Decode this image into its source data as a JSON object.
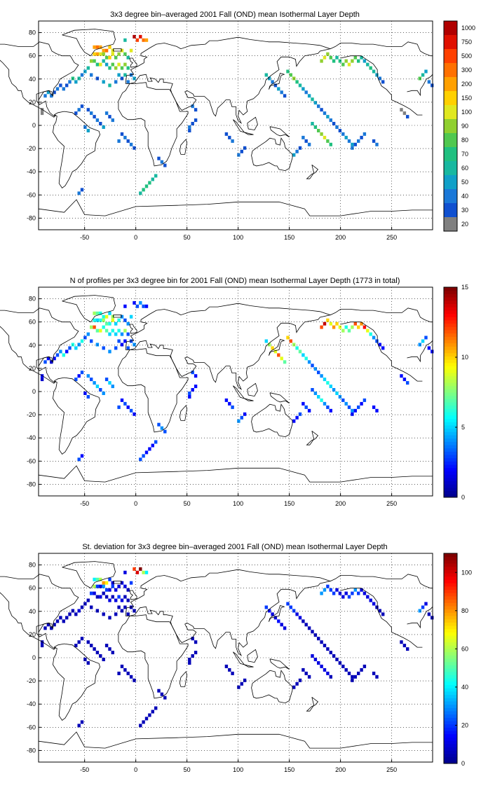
{
  "panels": [
    {
      "title": "3x3 degree bin–averaged 2001 Fall (OND) mean Isothermal Layer Depth",
      "colorbar": {
        "type": "discrete",
        "labels": [
          "20",
          "30",
          "40",
          "50",
          "60",
          "70",
          "80",
          "90",
          "100",
          "150",
          "200",
          "300",
          "500",
          "750",
          "1000"
        ],
        "colors": [
          "#808080",
          "#1050d0",
          "#1a78d8",
          "#10a0c8",
          "#18b8a0",
          "#20c080",
          "#50c850",
          "#90d030",
          "#e0e820",
          "#ffd000",
          "#ffa000",
          "#ff7000",
          "#ff4000",
          "#e01000",
          "#b00000"
        ]
      },
      "chart_data": {
        "type": "heatmap",
        "x_ticks": [
          "-50",
          "0",
          "50",
          "100",
          "150",
          "200",
          "250"
        ],
        "y_ticks": [
          "80",
          "60",
          "40",
          "20",
          "0",
          "-20",
          "-40",
          "-60",
          "-80"
        ],
        "xlim": [
          -95,
          290
        ],
        "ylim": [
          -90,
          90
        ],
        "grid": true
      }
    },
    {
      "title": "N of profiles per 3x3 degree bin for 2001 Fall (OND) mean Isothermal Layer Depth  (1773 in total)",
      "colorbar": {
        "type": "continuous",
        "labels": [
          "0",
          "5",
          "10",
          "15"
        ],
        "range": [
          0,
          15
        ]
      },
      "chart_data": {
        "type": "heatmap",
        "x_ticks": [
          "-50",
          "0",
          "50",
          "100",
          "150",
          "200",
          "250"
        ],
        "y_ticks": [
          "80",
          "60",
          "40",
          "20",
          "0",
          "-20",
          "-40",
          "-60",
          "-80"
        ],
        "xlim": [
          -95,
          290
        ],
        "ylim": [
          -90,
          90
        ],
        "grid": true
      }
    },
    {
      "title": "St. deviation for 3x3 degree bin–averaged 2001 Fall (OND) mean Isothermal Layer Depth",
      "colorbar": {
        "type": "continuous",
        "labels": [
          "0",
          "20",
          "40",
          "60",
          "80",
          "100"
        ],
        "range": [
          0,
          110
        ]
      },
      "chart_data": {
        "type": "heatmap",
        "x_ticks": [
          "-50",
          "0",
          "50",
          "100",
          "150",
          "200",
          "250"
        ],
        "y_ticks": [
          "80",
          "60",
          "40",
          "20",
          "0",
          "-20",
          "-40",
          "-60",
          "-80"
        ],
        "xlim": [
          -95,
          290
        ],
        "ylim": [
          -90,
          90
        ],
        "grid": true
      }
    }
  ],
  "jet_colors": [
    "#00008f",
    "#0000ff",
    "#0080ff",
    "#00ffff",
    "#80ff80",
    "#ffff00",
    "#ff8000",
    "#ff0000",
    "#800000"
  ]
}
